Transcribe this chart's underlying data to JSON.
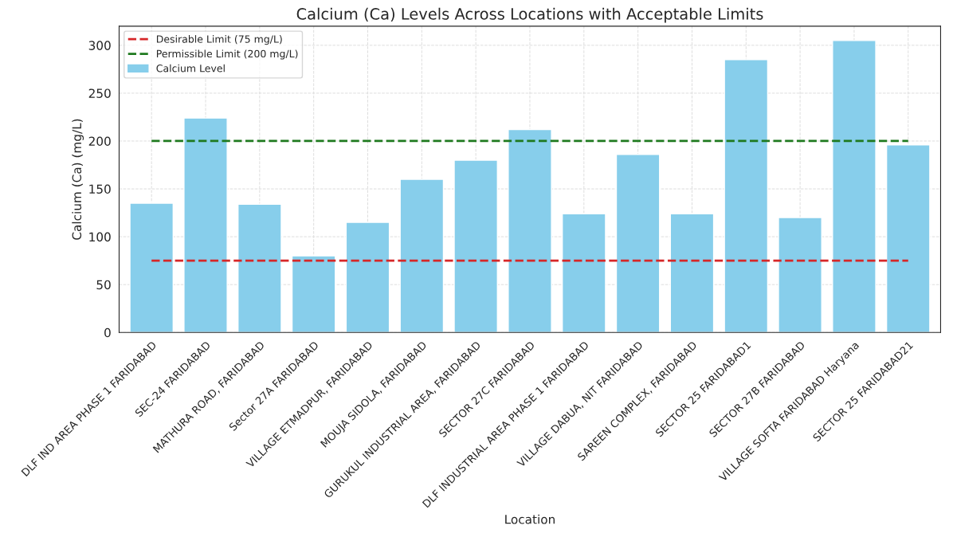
{
  "chart_data": {
    "type": "bar",
    "title": "Calcium (Ca) Levels Across Locations with Acceptable Limits",
    "xlabel": "Location",
    "ylabel": "Calcium (Ca) (mg/L)",
    "categories": [
      "DLF IND AREA PHASE 1 FARIDABAD",
      "SEC-24 FARIDABAD",
      "MATHURA ROAD, FARIDABAD",
      "Sector 27A FARIDABAD",
      "VILLAGE ETMADPUR, FARIDABAD",
      "MOUJA SIDOLA, FARIDABAD",
      "GURUKUL INDUSTRIAL AREA, FARIDABAD",
      "SECTOR 27C FARIDABAD",
      "DLF INDUSTRIAL AREA PHASE 1 FARIDABAD",
      "VILLAGE DABUA, NIT FARIDABAD",
      "SAREEN COMPLEX, FARIDABAD",
      "SECTOR 25 FARIDABAD1",
      "SECTOR 27B FARIDABAD",
      "VILLAGE SOFTA FARIDABAD Haryana",
      "SECTOR 25 FARIDABAD21"
    ],
    "series": [
      {
        "name": "Calcium Level",
        "color": "#87ceeb",
        "values": [
          135,
          224,
          134,
          80,
          115,
          160,
          180,
          212,
          124,
          186,
          124,
          285,
          120,
          305,
          196
        ]
      }
    ],
    "ref_lines": [
      {
        "axis": "y",
        "value": 75,
        "label": "Desirable Limit (75 mg/L)",
        "color": "#d62728",
        "line_style": "dashed"
      },
      {
        "axis": "y",
        "value": 200,
        "label": "Permissible Limit (200 mg/L)",
        "color": "#1f7a1f",
        "line_style": "dashed"
      }
    ],
    "ylim": [
      0,
      320
    ],
    "yticks": [
      0,
      50,
      100,
      150,
      200,
      250,
      300
    ],
    "grid": true,
    "legend": "top left"
  }
}
